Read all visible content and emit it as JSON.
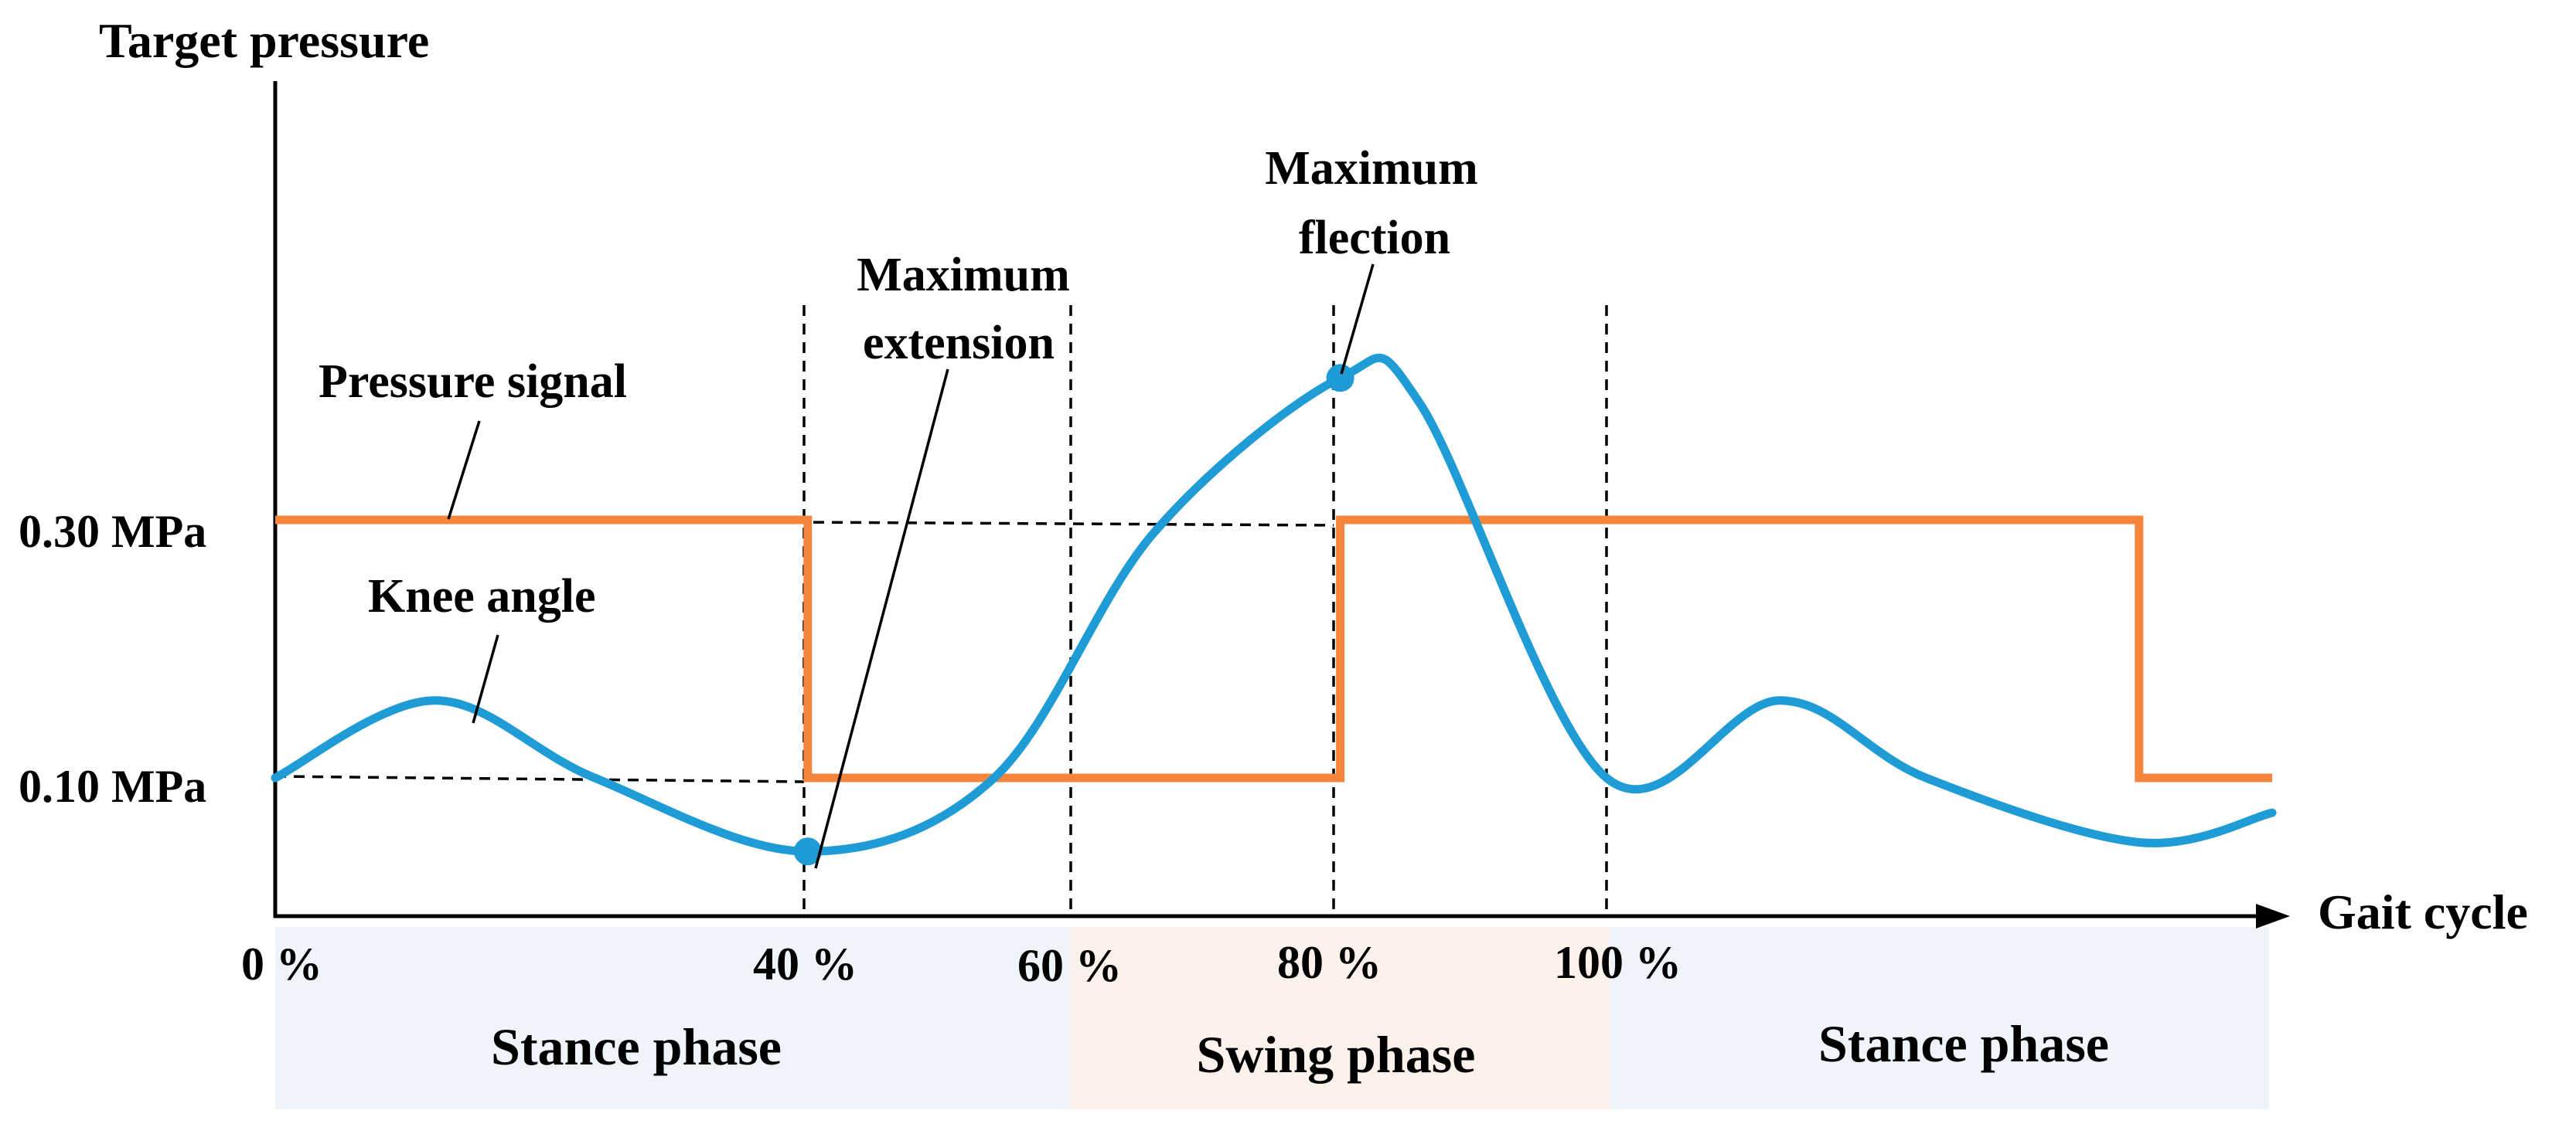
{
  "chart_data": {
    "type": "line",
    "title": "",
    "ylabel": "Target pressure",
    "xlabel": "Gait cycle",
    "x_tick_labels": [
      "0 %",
      "40 %",
      "60 %",
      "80 %",
      "100 %"
    ],
    "y_tick_labels": [
      "0.30 MPa",
      "0.10 MPa"
    ],
    "phases": [
      {
        "label": "Stance phase",
        "start": 0,
        "end": 60,
        "color": "#eef4f9"
      },
      {
        "label": "Swing phase",
        "start": 60,
        "end": 100,
        "color": "#fdf1ec"
      },
      {
        "label": "Stance phase",
        "start": 100,
        "end": 150,
        "color": "#eef4f9"
      }
    ],
    "guide_lines_x": [
      40,
      60,
      80,
      100
    ],
    "series": [
      {
        "name": "Pressure signal",
        "color": "#f5843c",
        "unit": "MPa",
        "points": [
          [
            0,
            0.3
          ],
          [
            40,
            0.3
          ],
          [
            40,
            0.1
          ],
          [
            80,
            0.1
          ],
          [
            80,
            0.3
          ],
          [
            140,
            0.3
          ],
          [
            140,
            0.1
          ],
          [
            150,
            0.1
          ]
        ]
      },
      {
        "name": "Knee angle",
        "color": "#1f9bd5",
        "points": [
          [
            0,
            0.1
          ],
          [
            12,
            0.16
          ],
          [
            24,
            0.1
          ],
          [
            40,
            0.043
          ],
          [
            54,
            0.1
          ],
          [
            66,
            0.29
          ],
          [
            80,
            0.41
          ],
          [
            86,
            0.39
          ],
          [
            100,
            0.1
          ],
          [
            113,
            0.16
          ],
          [
            124,
            0.1
          ],
          [
            140,
            0.05
          ],
          [
            150,
            0.073
          ]
        ]
      }
    ],
    "annotations": [
      {
        "text": [
          "Pressure signal"
        ],
        "series": "Pressure signal"
      },
      {
        "text": [
          "Knee angle"
        ],
        "series": "Knee angle"
      },
      {
        "text": [
          "Maximum",
          "extension"
        ],
        "x": 40,
        "y": 0.043
      },
      {
        "text": [
          "Maximum",
          "flection"
        ],
        "x": 80,
        "y": 0.41
      }
    ]
  }
}
